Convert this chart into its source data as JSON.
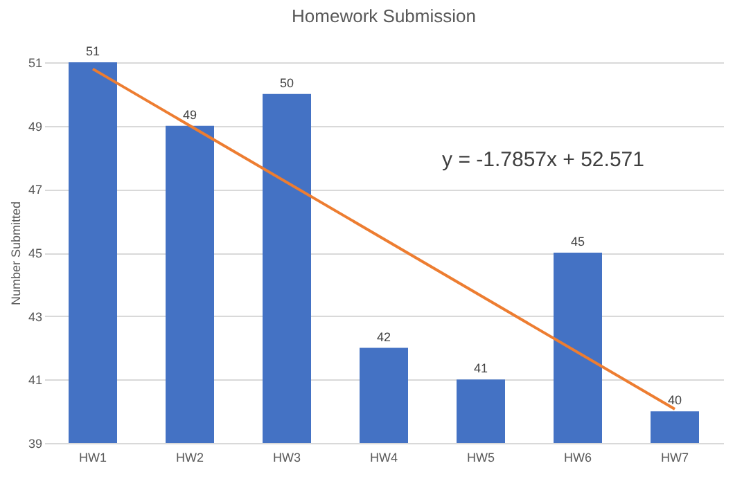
{
  "chart_data": {
    "type": "bar",
    "title": "Homework Submission",
    "ylabel": "Number Submitted",
    "categories": [
      "HW1",
      "HW2",
      "HW3",
      "HW4",
      "HW5",
      "HW6",
      "HW7"
    ],
    "series": [
      {
        "color": "#4472c4",
        "values": [
          51,
          49,
          50,
          42,
          41,
          45,
          40
        ],
        "value_labels": [
          "51",
          "49",
          "50",
          "42",
          "41",
          "45",
          "40"
        ]
      },
      {
        "type": "line",
        "color": "#ed7d31",
        "x": [
          "HW1",
          "HW7"
        ],
        "values": [
          50.79,
          40.07
        ]
      }
    ],
    "ylim": [
      39,
      51
    ],
    "yticks": [
      39,
      41,
      43,
      45,
      47,
      49,
      51
    ],
    "grid": "y",
    "annotations": [
      "y = -1.7857x + 52.571"
    ]
  }
}
